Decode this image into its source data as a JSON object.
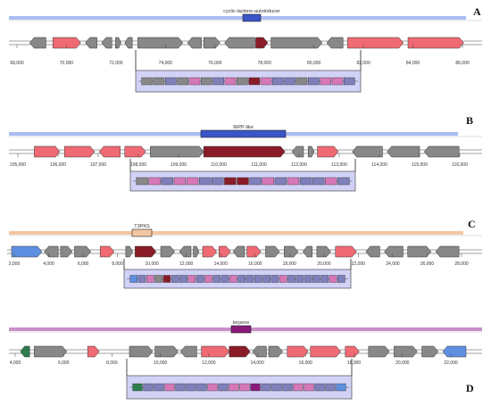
{
  "colors": {
    "gray": "#888888",
    "red": "#ef6a73",
    "darkred": "#8a1c28",
    "blue": "#5f8fe0",
    "green": "#2e7d4f",
    "pink": "#d678b8",
    "lavender": "#7f7fba",
    "purple": "#8a1a7a",
    "detail_bg": "#d2d2f7",
    "region_a": "#a9bdf2",
    "region_b": "#a9bdf2",
    "region_c": "#f4c6a2",
    "region_d": "#c98fc9",
    "label_a": "#3b55c8",
    "label_b": "#3b55c8",
    "label_c": "#f4c6a2",
    "label_d": "#8a1a7a"
  },
  "panels": [
    {
      "letter": "A",
      "region_label": "cyclic-lactone-autoinducer",
      "ticks": [
        "68,000",
        "70,000",
        "72,000",
        "74,000",
        "76,000",
        "78,000",
        "80,000",
        "82,000",
        "84,000",
        "86,000"
      ],
      "genes": [
        {
          "c": "gray",
          "d": -1,
          "s": 0.035,
          "e": 0.07
        },
        {
          "c": "red",
          "d": 1,
          "s": 0.085,
          "e": 0.145
        },
        {
          "c": "gray",
          "d": -1,
          "s": 0.155,
          "e": 0.18
        },
        {
          "c": "gray",
          "d": -1,
          "s": 0.19,
          "e": 0.212
        },
        {
          "c": "gray",
          "d": 1,
          "s": 0.22,
          "e": 0.232
        },
        {
          "c": "gray",
          "d": -1,
          "s": 0.24,
          "e": 0.256
        },
        {
          "c": "gray",
          "d": 1,
          "s": 0.268,
          "e": 0.365
        },
        {
          "c": "gray",
          "d": -1,
          "s": 0.375,
          "e": 0.405
        },
        {
          "c": "gray",
          "d": 1,
          "s": 0.41,
          "e": 0.445
        },
        {
          "c": "gray",
          "d": -1,
          "s": 0.455,
          "e": 0.52
        },
        {
          "c": "darkred",
          "d": 1,
          "s": 0.522,
          "e": 0.548
        },
        {
          "c": "gray",
          "d": 1,
          "s": 0.555,
          "e": 0.665
        },
        {
          "c": "gray",
          "d": -1,
          "s": 0.675,
          "e": 0.71
        },
        {
          "c": "red",
          "d": 1,
          "s": 0.72,
          "e": 0.84
        },
        {
          "c": "red",
          "d": 1,
          "s": 0.85,
          "e": 0.97
        }
      ]
    },
    {
      "letter": "B",
      "region_label": "RiPP-like",
      "ticks": [
        "105,000",
        "106,000",
        "107,000",
        "108,000",
        "109,000",
        "110,000",
        "111,000",
        "112,000",
        "113,000",
        "114,000",
        "115,000",
        "116,000"
      ],
      "genes": [
        {
          "c": "red",
          "d": 1,
          "s": 0.045,
          "e": 0.1
        },
        {
          "c": "red",
          "d": 1,
          "s": 0.11,
          "e": 0.175
        },
        {
          "c": "red",
          "d": -1,
          "s": 0.185,
          "e": 0.23
        },
        {
          "c": "red",
          "d": 1,
          "s": 0.24,
          "e": 0.285
        },
        {
          "c": "gray",
          "d": 1,
          "s": 0.295,
          "e": 0.41
        },
        {
          "c": "darkred",
          "d": 1,
          "s": 0.41,
          "e": 0.585
        },
        {
          "c": "gray",
          "d": -1,
          "s": 0.6,
          "e": 0.625
        },
        {
          "c": "gray",
          "d": 1,
          "s": 0.635,
          "e": 0.648
        },
        {
          "c": "red",
          "d": 1,
          "s": 0.655,
          "e": 0.7
        },
        {
          "c": "gray",
          "d": -1,
          "s": 0.73,
          "e": 0.795
        },
        {
          "c": "gray",
          "d": -1,
          "s": 0.805,
          "e": 0.875
        },
        {
          "c": "gray",
          "d": -1,
          "s": 0.885,
          "e": 0.96
        }
      ]
    },
    {
      "letter": "C",
      "region_label": "T3PKS",
      "ticks": [
        "2,000",
        "4,000",
        "6,000",
        "8,000",
        "10,000",
        "12,000",
        "14,000",
        "16,000",
        "18,000",
        "20,000",
        "22,000",
        "24,000",
        "26,000",
        "28,000"
      ],
      "genes": [
        {
          "c": "blue",
          "d": 1,
          "s": 0.0,
          "e": 0.065
        },
        {
          "c": "gray",
          "d": -1,
          "s": 0.07,
          "e": 0.1
        },
        {
          "c": "gray",
          "d": 1,
          "s": 0.105,
          "e": 0.13
        },
        {
          "c": "gray",
          "d": 1,
          "s": 0.135,
          "e": 0.17
        },
        {
          "c": "red",
          "d": 1,
          "s": 0.19,
          "e": 0.22
        },
        {
          "c": "gray",
          "d": 1,
          "s": 0.245,
          "e": 0.26
        },
        {
          "c": "darkred",
          "d": 1,
          "s": 0.265,
          "e": 0.31
        },
        {
          "c": "gray",
          "d": 1,
          "s": 0.32,
          "e": 0.35
        },
        {
          "c": "gray",
          "d": -1,
          "s": 0.36,
          "e": 0.385
        },
        {
          "c": "gray",
          "d": 1,
          "s": 0.39,
          "e": 0.402
        },
        {
          "c": "red",
          "d": 1,
          "s": 0.41,
          "e": 0.44
        },
        {
          "c": "red",
          "d": 1,
          "s": 0.445,
          "e": 0.47
        },
        {
          "c": "gray",
          "d": -1,
          "s": 0.475,
          "e": 0.5
        },
        {
          "c": "red",
          "d": 1,
          "s": 0.505,
          "e": 0.535
        },
        {
          "c": "gray",
          "d": 1,
          "s": 0.545,
          "e": 0.575
        },
        {
          "c": "gray",
          "d": 1,
          "s": 0.585,
          "e": 0.615
        },
        {
          "c": "gray",
          "d": -1,
          "s": 0.625,
          "e": 0.645
        },
        {
          "c": "gray",
          "d": 1,
          "s": 0.655,
          "e": 0.685
        },
        {
          "c": "red",
          "d": 1,
          "s": 0.695,
          "e": 0.74
        },
        {
          "c": "gray",
          "d": -1,
          "s": 0.76,
          "e": 0.79
        },
        {
          "c": "gray",
          "d": -1,
          "s": 0.8,
          "e": 0.84
        },
        {
          "c": "gray",
          "d": 1,
          "s": 0.85,
          "e": 0.9
        },
        {
          "c": "gray",
          "d": -1,
          "s": 0.91,
          "e": 0.96
        }
      ]
    },
    {
      "letter": "D",
      "region_label": "terpene",
      "ticks": [
        "4,000",
        "6,000",
        "8,000",
        "10,000",
        "12,000",
        "14,000",
        "16,000",
        "18,000",
        "20,000",
        "22,000"
      ],
      "genes": [
        {
          "c": "green",
          "d": -1,
          "s": 0.015,
          "e": 0.035
        },
        {
          "c": "gray",
          "d": 1,
          "s": 0.045,
          "e": 0.115
        },
        {
          "c": "red",
          "d": 1,
          "s": 0.16,
          "e": 0.185
        },
        {
          "c": "gray",
          "d": 1,
          "s": 0.25,
          "e": 0.3
        },
        {
          "c": "gray",
          "d": 1,
          "s": 0.305,
          "e": 0.355
        },
        {
          "c": "gray",
          "d": -1,
          "s": 0.36,
          "e": 0.395
        },
        {
          "c": "red",
          "d": 1,
          "s": 0.405,
          "e": 0.465
        },
        {
          "c": "darkred",
          "d": 1,
          "s": 0.465,
          "e": 0.51
        },
        {
          "c": "gray",
          "d": -1,
          "s": 0.515,
          "e": 0.545
        },
        {
          "c": "gray",
          "d": 1,
          "s": 0.55,
          "e": 0.58
        },
        {
          "c": "red",
          "d": 1,
          "s": 0.59,
          "e": 0.635
        },
        {
          "c": "red",
          "d": 1,
          "s": 0.64,
          "e": 0.705
        },
        {
          "c": "red",
          "d": 1,
          "s": 0.715,
          "e": 0.745
        },
        {
          "c": "gray",
          "d": 1,
          "s": 0.765,
          "e": 0.81
        },
        {
          "c": "gray",
          "d": 1,
          "s": 0.82,
          "e": 0.87
        },
        {
          "c": "gray",
          "d": 1,
          "s": 0.88,
          "e": 0.915
        },
        {
          "c": "blue",
          "d": -1,
          "s": 0.925,
          "e": 0.975
        }
      ]
    }
  ],
  "details": [
    {
      "genes": [
        "gray",
        "gray",
        "lavender",
        "gray",
        "pink",
        "gray",
        "lavender",
        "pink",
        "gray",
        "darkred",
        "pink",
        "lavender",
        "lavender",
        "gray",
        "lavender",
        "pink",
        "pink",
        "lavender"
      ]
    },
    {
      "genes": [
        "gray",
        "pink",
        "lavender",
        "pink",
        "pink",
        "lavender",
        "lavender",
        "darkred",
        "darkred",
        "lavender",
        "pink",
        "lavender",
        "pink",
        "lavender",
        "lavender",
        "pink",
        "lavender"
      ]
    },
    {
      "genes": [
        "blue",
        "lavender",
        "pink",
        "gray",
        "darkred",
        "lavender",
        "lavender",
        "pink",
        "lavender",
        "pink",
        "lavender",
        "lavender",
        "pink",
        "lavender",
        "lavender",
        "lavender",
        "lavender",
        "lavender",
        "pink",
        "lavender",
        "lavender",
        "lavender",
        "lavender",
        "lavender",
        "pink",
        "lavender"
      ]
    },
    {
      "genes": [
        "green",
        "lavender",
        "lavender",
        "pink",
        "lavender",
        "lavender",
        "lavender",
        "pink",
        "lavender",
        "pink",
        "pink",
        "purple",
        "lavender",
        "lavender",
        "lavender",
        "pink",
        "pink",
        "lavender",
        "lavender",
        "blue"
      ]
    }
  ]
}
